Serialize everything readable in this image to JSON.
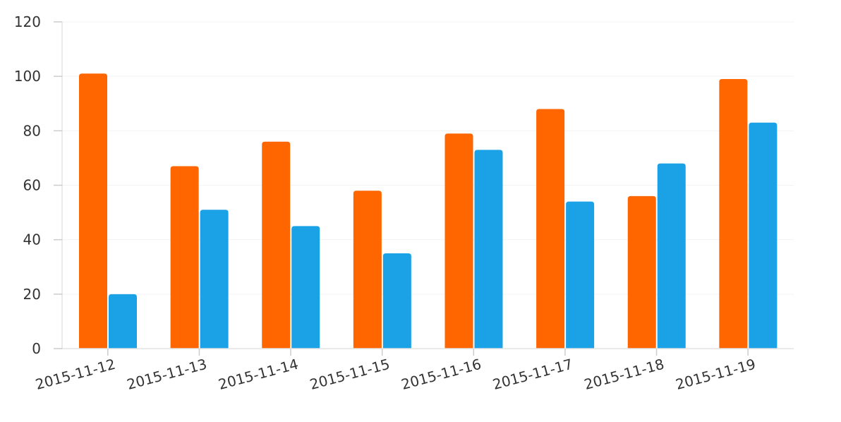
{
  "chart_data": {
    "type": "bar",
    "categories": [
      "2015-11-12",
      "2015-11-13",
      "2015-11-14",
      "2015-11-15",
      "2015-11-16",
      "2015-11-17",
      "2015-11-18",
      "2015-11-19"
    ],
    "series": [
      {
        "color": "#ff6600",
        "values": [
          101,
          67,
          76,
          58,
          79,
          88,
          56,
          99
        ]
      },
      {
        "color": "#1ba1e6",
        "values": [
          20,
          51,
          45,
          35,
          73,
          54,
          68,
          83
        ]
      }
    ],
    "ylim": [
      0,
      120
    ],
    "yticks": [
      0,
      20,
      40,
      60,
      80,
      100,
      120
    ],
    "grid": true,
    "legend": "none",
    "title": "",
    "xlabel": "",
    "ylabel": ""
  }
}
